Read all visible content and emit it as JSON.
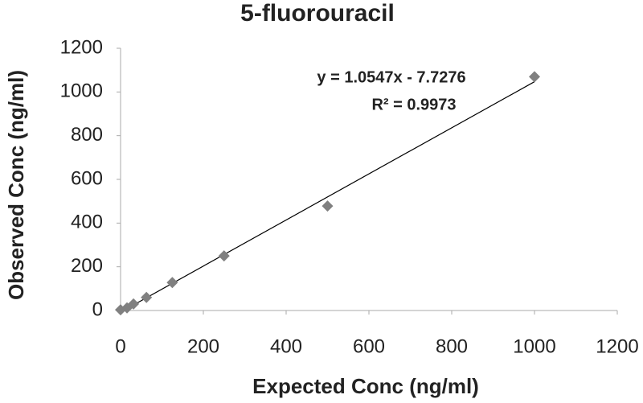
{
  "chart_data": {
    "type": "scatter",
    "title": "5-fluorouracil",
    "x_label": "Expected Conc (ng/ml)",
    "y_label": "Observed Conc (ng/ml)",
    "x": [
      0,
      15.6,
      31.25,
      62.5,
      125,
      250,
      500,
      1000
    ],
    "series": [
      {
        "color": "#808080",
        "values": [
          3,
          12,
          30,
          60,
          128,
          250,
          478,
          1070
        ]
      }
    ],
    "xlim": [
      0,
      1200
    ],
    "xticks": [
      0,
      200,
      400,
      600,
      800,
      1000,
      1200
    ],
    "ylim": [
      0,
      1200
    ],
    "yticks": [
      0,
      200,
      400,
      600,
      800,
      1000,
      1200
    ],
    "trendline": {
      "slope": 1.0547,
      "intercept": -7.7276,
      "color": "#000000",
      "equation": "y = 1.0547x - 7.7276",
      "r_squared": "R² = 0.9973"
    }
  }
}
